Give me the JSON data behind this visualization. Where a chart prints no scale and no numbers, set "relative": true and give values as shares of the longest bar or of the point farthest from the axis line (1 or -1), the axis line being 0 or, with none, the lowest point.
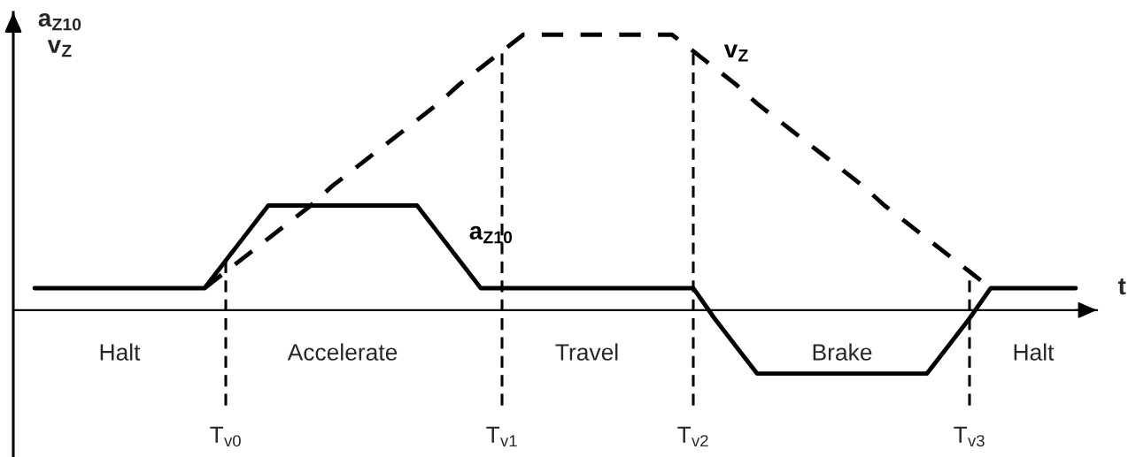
{
  "chart_data": {
    "type": "line",
    "relative": true,
    "xlabel": "t",
    "ylabel": "a$_{Z10}$\nv$_{Z}$",
    "tick_labels": "x",
    "categories": [
      null,
      null,
      null,
      null,
      null,
      null,
      null,
      null,
      null,
      "T$_{v0}$",
      null,
      null,
      null,
      null,
      null,
      null,
      null,
      null,
      null,
      null,
      null,
      null,
      "T$_{v1}$",
      null,
      null,
      null,
      null,
      null,
      null,
      null,
      null,
      "T$_{v2}$",
      null,
      null,
      null,
      null,
      null,
      null,
      null,
      null,
      null,
      null,
      null,
      null,
      "T$_{v3}$",
      null,
      null,
      null,
      null,
      null
    ],
    "series": [
      {
        "name": "a$_{Z10}$",
        "color": "#000000",
        "line_style": "solid",
        "values": [
          0.08,
          0.08,
          0.08,
          0.08,
          0.08,
          0.08,
          0.08,
          0.08,
          0.08,
          0.18,
          0.28,
          0.38,
          0.38,
          0.38,
          0.38,
          0.38,
          0.38,
          0.38,
          0.38,
          0.28,
          0.18,
          0.08,
          0.08,
          0.08,
          0.08,
          0.08,
          0.08,
          0.08,
          0.08,
          0.08,
          0.08,
          0.08,
          -0.03,
          -0.13,
          -0.23,
          -0.23,
          -0.23,
          -0.23,
          -0.23,
          -0.23,
          -0.23,
          -0.23,
          -0.23,
          -0.13,
          -0.03,
          0.08,
          0.08,
          0.08,
          0.08,
          0.08
        ]
      },
      {
        "name": "v$_{Z}$",
        "color": "#000000",
        "line_style": "dashed",
        "values": [
          null,
          null,
          null,
          null,
          null,
          null,
          null,
          null,
          0.08,
          0.14,
          0.2,
          0.26,
          0.32,
          0.38,
          0.45,
          0.51,
          0.57,
          0.63,
          0.69,
          0.75,
          0.82,
          0.88,
          0.94,
          1,
          1,
          1,
          1,
          1,
          1,
          1,
          1,
          0.94,
          0.88,
          0.82,
          0.75,
          0.69,
          0.63,
          0.57,
          0.51,
          0.45,
          0.38,
          0.32,
          0.26,
          0.2,
          0.14,
          0.08,
          null,
          null,
          null,
          null
        ]
      }
    ],
    "ref_lines": [
      {
        "axis": "x",
        "value": "T$_{v0}$",
        "line_style": "dashed",
        "color": "#000000"
      },
      {
        "axis": "x",
        "value": "T$_{v1}$",
        "line_style": "dashed",
        "color": "#000000"
      },
      {
        "axis": "x",
        "value": "T$_{v2}$",
        "line_style": "dashed",
        "color": "#000000"
      },
      {
        "axis": "x",
        "value": "T$_{v3}$",
        "line_style": "dashed",
        "color": "#000000"
      }
    ],
    "annotations": [
      "Halt",
      "Accelerate",
      "Travel",
      "Brake",
      "Halt"
    ]
  }
}
